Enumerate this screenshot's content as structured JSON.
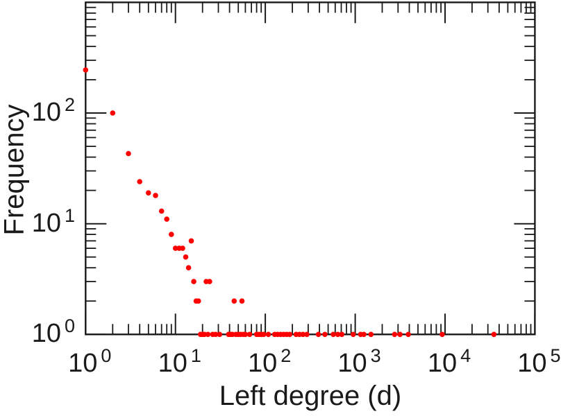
{
  "chart_data": {
    "type": "scatter",
    "title": "",
    "xlabel": "Left degree (d)",
    "ylabel": "Frequency",
    "x_scale": "log",
    "y_scale": "log",
    "xlim": [
      1,
      100000
    ],
    "ylim": [
      1,
      1000
    ],
    "x_tick_exponents": [
      0,
      1,
      2,
      3,
      4,
      5
    ],
    "y_tick_exponents": [
      0,
      1,
      2
    ],
    "tick_label_base": "10",
    "grid": false,
    "legend": "none",
    "marker_color": "#ff0000",
    "axis_color": "#1a1a1a",
    "background_color": "#ffffff",
    "points": [
      [
        1,
        245
      ],
      [
        2,
        100
      ],
      [
        3,
        43
      ],
      [
        4,
        24
      ],
      [
        5,
        19
      ],
      [
        6,
        18
      ],
      [
        7,
        13
      ],
      [
        8,
        11
      ],
      [
        9,
        8
      ],
      [
        10,
        6
      ],
      [
        11,
        6
      ],
      [
        12,
        6
      ],
      [
        13,
        5
      ],
      [
        14,
        4
      ],
      [
        15,
        7
      ],
      [
        16,
        3
      ],
      [
        17,
        2
      ],
      [
        18,
        2
      ],
      [
        19,
        1
      ],
      [
        20,
        1
      ],
      [
        21,
        1
      ],
      [
        22,
        3
      ],
      [
        23,
        1
      ],
      [
        24,
        3
      ],
      [
        26,
        1
      ],
      [
        28,
        1
      ],
      [
        31,
        1
      ],
      [
        39,
        1
      ],
      [
        41,
        1
      ],
      [
        43,
        1
      ],
      [
        45,
        2
      ],
      [
        47,
        1
      ],
      [
        50,
        1
      ],
      [
        53,
        1
      ],
      [
        55,
        2
      ],
      [
        57,
        1
      ],
      [
        60,
        1
      ],
      [
        67,
        1
      ],
      [
        80,
        1
      ],
      [
        85,
        1
      ],
      [
        90,
        1
      ],
      [
        96,
        1
      ],
      [
        108,
        1
      ],
      [
        127,
        1
      ],
      [
        137,
        1
      ],
      [
        148,
        1
      ],
      [
        160,
        1
      ],
      [
        173,
        1
      ],
      [
        187,
        1
      ],
      [
        220,
        1
      ],
      [
        240,
        1
      ],
      [
        262,
        1
      ],
      [
        290,
        1
      ],
      [
        390,
        1
      ],
      [
        460,
        1
      ],
      [
        570,
        1
      ],
      [
        640,
        1
      ],
      [
        710,
        1
      ],
      [
        950,
        1
      ],
      [
        1150,
        1
      ],
      [
        1250,
        1
      ],
      [
        1500,
        1
      ],
      [
        2750,
        1
      ],
      [
        3150,
        1
      ],
      [
        3900,
        1
      ],
      [
        9300,
        1
      ],
      [
        35000,
        1
      ]
    ]
  }
}
